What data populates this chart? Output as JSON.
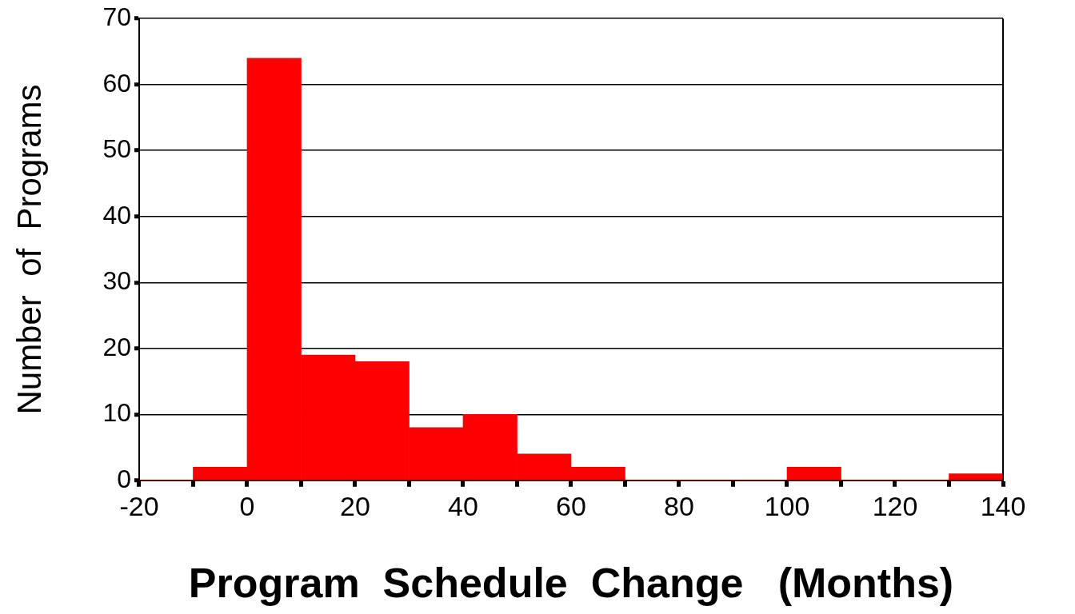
{
  "chart_data": {
    "type": "histogram",
    "xlabel": "Program  Schedule  Change   (Months)",
    "ylabel": "Number  of  Programs",
    "bins": [
      -20,
      -10,
      0,
      10,
      20,
      30,
      40,
      50,
      60,
      70,
      80,
      90,
      100,
      110,
      120,
      130,
      140
    ],
    "values": [
      0,
      2,
      64,
      19,
      18,
      8,
      10,
      4,
      2,
      0,
      0,
      0,
      2,
      0,
      0,
      1
    ],
    "color": "#ff0000",
    "xlim": [
      -20,
      140
    ],
    "xticks": [
      -20,
      {
        "value": -10,
        "label": null
      },
      0,
      {
        "value": 10,
        "label": null
      },
      20,
      {
        "value": 30,
        "label": null
      },
      40,
      {
        "value": 50,
        "label": null
      },
      60,
      {
        "value": 70,
        "label": null
      },
      80,
      {
        "value": 90,
        "label": null
      },
      100,
      {
        "value": 110,
        "label": null
      },
      120,
      {
        "value": 130,
        "label": null
      },
      140
    ],
    "ylim": [
      0,
      70
    ],
    "yticks": [
      0,
      10,
      20,
      30,
      40,
      50,
      60,
      70
    ],
    "grid": "y",
    "legend": false
  }
}
